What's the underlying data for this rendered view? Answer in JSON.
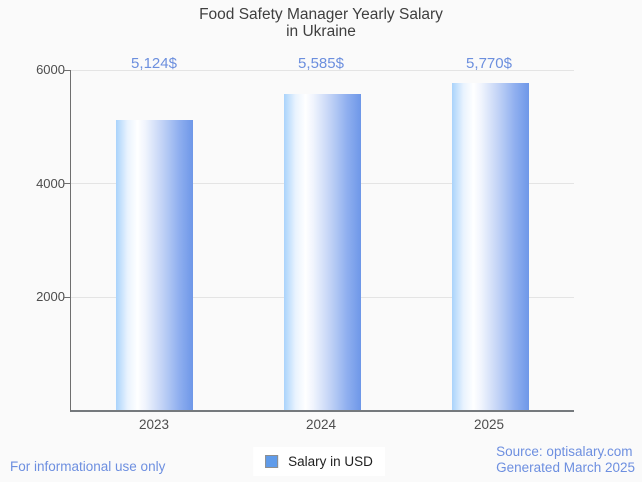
{
  "header": {
    "title_lines": [
      "Food Safety Manager Yearly Salary",
      "in Ukraine"
    ]
  },
  "chart_data": {
    "type": "bar",
    "title": "Food Safety Manager Yearly Salary in Ukraine",
    "categories": [
      "2023",
      "2024",
      "2025"
    ],
    "series": [
      {
        "name": "Salary in USD",
        "values": [
          5124,
          5585,
          5770
        ]
      }
    ],
    "value_labels": [
      "5,124$",
      "5,585$",
      "5,770$"
    ],
    "xlabel": "",
    "ylabel": "",
    "ylim": [
      0,
      6000
    ],
    "yticks": [
      2000,
      4000,
      6000
    ],
    "ytick_labels": [
      "2000",
      "4000",
      "6000"
    ],
    "grid": true,
    "legend_position": "bottom",
    "bar_gradient": [
      "#a9d3fb 0%",
      "#e9f3fe 15%",
      "#ffffff 28%",
      "#f0f4fd 38%",
      "#c2d3f6 60%",
      "#8fafef 82%",
      "#6e97e8 100%"
    ]
  },
  "legend": {
    "label": "Salary in USD",
    "marker_color": "#5f9bea"
  },
  "footer": {
    "left": "For informational use only",
    "source_line1": "Source: optisalary.com",
    "source_line2": "Generated March 2025"
  },
  "colors": {
    "background": "#fafafa",
    "title_text": "#3f3f3f",
    "axis_text": "#4d4d4d",
    "accent_blue_text": "#6d8fde",
    "axis_line": "#6f6f6f",
    "gridline": "#e4e4e4",
    "bar_main": "#6e97e8",
    "bar_light": "#a9d3fb"
  }
}
